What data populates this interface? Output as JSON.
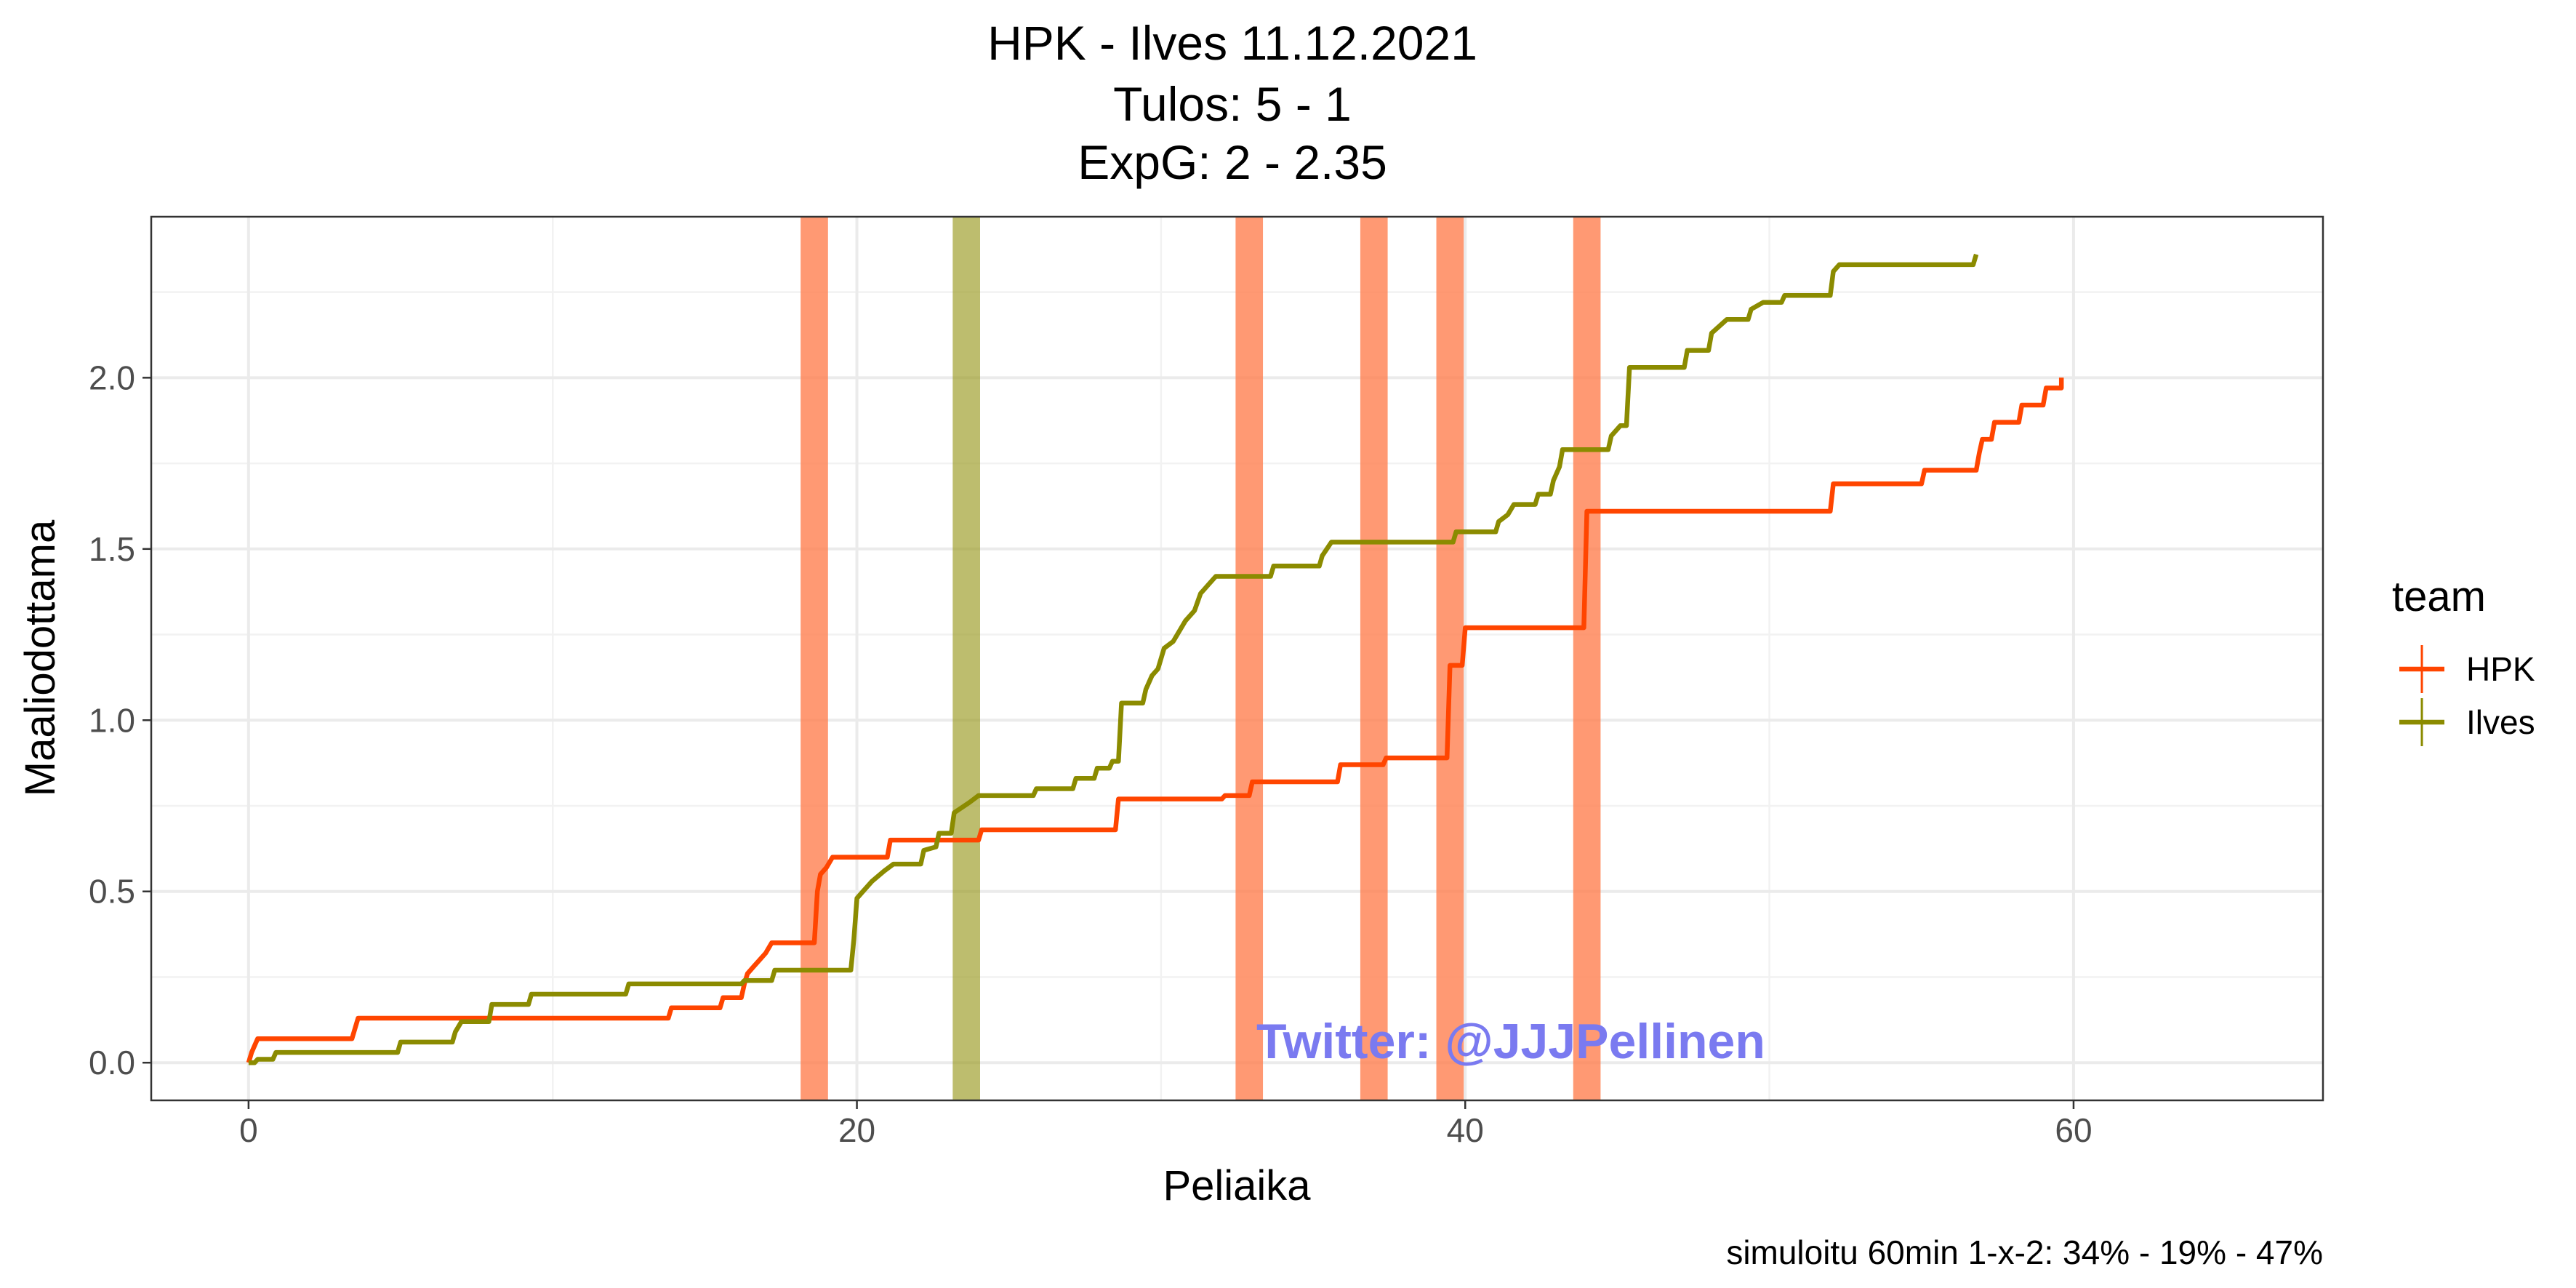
{
  "chart_data": {
    "type": "line",
    "title": [
      "HPK - Ilves 11.12.2021",
      "Tulos: 5 - 1",
      "ExpG: 2 - 2.35"
    ],
    "xlabel": "Peliaika",
    "ylabel": "Maaliodottama",
    "xlim": [
      -3.2,
      68.2
    ],
    "ylim": [
      -0.11,
      2.47
    ],
    "x_ticks": [
      0,
      20,
      40,
      60
    ],
    "x_tick_labels": [
      "0",
      "20",
      "40",
      "60"
    ],
    "y_ticks": [
      0,
      0.5,
      1,
      1.5,
      2
    ],
    "y_tick_labels": [
      "0.0",
      "0.5",
      "1.0",
      "1.5",
      "2.0"
    ],
    "grid": true,
    "legend": {
      "title": "team",
      "position": "right"
    },
    "caption": "simuloitu 60min 1-x-2:  34% - 19% - 47%",
    "watermark": "Twitter: @JJJPellinen",
    "series": [
      {
        "name": "HPK",
        "color": "#ff4500",
        "points": [
          [
            0,
            0
          ],
          [
            0.1,
            0.03
          ],
          [
            0.2,
            0.05
          ],
          [
            0.3,
            0.07
          ],
          [
            3.4,
            0.07
          ],
          [
            3.5,
            0.1
          ],
          [
            3.6,
            0.13
          ],
          [
            13.8,
            0.13
          ],
          [
            13.9,
            0.16
          ],
          [
            15.5,
            0.16
          ],
          [
            15.6,
            0.19
          ],
          [
            16.2,
            0.19
          ],
          [
            16.3,
            0.23
          ],
          [
            16.4,
            0.26
          ],
          [
            16.6,
            0.28
          ],
          [
            16.8,
            0.3
          ],
          [
            17.0,
            0.32
          ],
          [
            17.2,
            0.35
          ],
          [
            18.6,
            0.35
          ],
          [
            18.7,
            0.5
          ],
          [
            18.8,
            0.55
          ],
          [
            19.0,
            0.57
          ],
          [
            19.2,
            0.6
          ],
          [
            21.0,
            0.6
          ],
          [
            21.1,
            0.65
          ],
          [
            24.0,
            0.65
          ],
          [
            24.1,
            0.68
          ],
          [
            28.5,
            0.68
          ],
          [
            28.6,
            0.77
          ],
          [
            32.0,
            0.77
          ],
          [
            32.1,
            0.78
          ],
          [
            32.9,
            0.78
          ],
          [
            33.0,
            0.82
          ],
          [
            35.8,
            0.82
          ],
          [
            35.9,
            0.87
          ],
          [
            37.3,
            0.87
          ],
          [
            37.4,
            0.89
          ],
          [
            39.4,
            0.89
          ],
          [
            39.5,
            1.16
          ],
          [
            39.9,
            1.16
          ],
          [
            40.0,
            1.27
          ],
          [
            43.9,
            1.27
          ],
          [
            44.0,
            1.61
          ],
          [
            52.0,
            1.61
          ],
          [
            52.1,
            1.69
          ],
          [
            55.0,
            1.69
          ],
          [
            55.1,
            1.73
          ],
          [
            56.8,
            1.73
          ],
          [
            56.9,
            1.78
          ],
          [
            57.0,
            1.82
          ],
          [
            57.3,
            1.82
          ],
          [
            57.4,
            1.87
          ],
          [
            58.2,
            1.87
          ],
          [
            58.3,
            1.92
          ],
          [
            59.0,
            1.92
          ],
          [
            59.1,
            1.97
          ],
          [
            59.6,
            1.97
          ],
          [
            59.6,
            2.0
          ]
        ]
      },
      {
        "name": "Ilves",
        "color": "#8b8b00",
        "points": [
          [
            0,
            0
          ],
          [
            0.2,
            0
          ],
          [
            0.3,
            0.01
          ],
          [
            0.8,
            0.01
          ],
          [
            0.9,
            0.03
          ],
          [
            4.9,
            0.03
          ],
          [
            5.0,
            0.06
          ],
          [
            6.7,
            0.06
          ],
          [
            6.8,
            0.09
          ],
          [
            7.0,
            0.12
          ],
          [
            7.9,
            0.12
          ],
          [
            8.0,
            0.17
          ],
          [
            9.2,
            0.17
          ],
          [
            9.3,
            0.2
          ],
          [
            12.4,
            0.2
          ],
          [
            12.5,
            0.23
          ],
          [
            16.2,
            0.23
          ],
          [
            16.3,
            0.24
          ],
          [
            17.2,
            0.24
          ],
          [
            17.3,
            0.27
          ],
          [
            19.8,
            0.27
          ],
          [
            19.9,
            0.36
          ],
          [
            20.0,
            0.48
          ],
          [
            20.2,
            0.5
          ],
          [
            20.5,
            0.53
          ],
          [
            20.9,
            0.56
          ],
          [
            21.2,
            0.58
          ],
          [
            22.1,
            0.58
          ],
          [
            22.2,
            0.62
          ],
          [
            22.6,
            0.63
          ],
          [
            22.7,
            0.67
          ],
          [
            23.1,
            0.67
          ],
          [
            23.2,
            0.73
          ],
          [
            23.7,
            0.76
          ],
          [
            24.0,
            0.78
          ],
          [
            25.8,
            0.78
          ],
          [
            25.9,
            0.8
          ],
          [
            27.1,
            0.8
          ],
          [
            27.2,
            0.83
          ],
          [
            27.8,
            0.83
          ],
          [
            27.9,
            0.86
          ],
          [
            28.3,
            0.86
          ],
          [
            28.4,
            0.88
          ],
          [
            28.6,
            0.88
          ],
          [
            28.7,
            1.05
          ],
          [
            29.4,
            1.05
          ],
          [
            29.5,
            1.09
          ],
          [
            29.7,
            1.13
          ],
          [
            29.9,
            1.15
          ],
          [
            30.1,
            1.21
          ],
          [
            30.4,
            1.23
          ],
          [
            30.8,
            1.29
          ],
          [
            31.1,
            1.32
          ],
          [
            31.3,
            1.37
          ],
          [
            31.6,
            1.4
          ],
          [
            31.8,
            1.42
          ],
          [
            33.6,
            1.42
          ],
          [
            33.7,
            1.45
          ],
          [
            35.2,
            1.45
          ],
          [
            35.3,
            1.48
          ],
          [
            35.6,
            1.52
          ],
          [
            39.6,
            1.52
          ],
          [
            39.7,
            1.55
          ],
          [
            41.0,
            1.55
          ],
          [
            41.1,
            1.58
          ],
          [
            41.4,
            1.6
          ],
          [
            41.6,
            1.63
          ],
          [
            42.3,
            1.63
          ],
          [
            42.4,
            1.66
          ],
          [
            42.8,
            1.66
          ],
          [
            42.9,
            1.7
          ],
          [
            43.1,
            1.74
          ],
          [
            43.2,
            1.79
          ],
          [
            44.7,
            1.79
          ],
          [
            44.8,
            1.83
          ],
          [
            45.1,
            1.86
          ],
          [
            45.3,
            1.86
          ],
          [
            45.4,
            2.03
          ],
          [
            47.2,
            2.03
          ],
          [
            47.3,
            2.08
          ],
          [
            48.0,
            2.08
          ],
          [
            48.1,
            2.13
          ],
          [
            48.6,
            2.17
          ],
          [
            49.3,
            2.17
          ],
          [
            49.4,
            2.2
          ],
          [
            49.8,
            2.22
          ],
          [
            50.4,
            2.22
          ],
          [
            50.5,
            2.24
          ],
          [
            52.0,
            2.24
          ],
          [
            52.1,
            2.31
          ],
          [
            52.3,
            2.33
          ],
          [
            56.7,
            2.33
          ],
          [
            56.8,
            2.36
          ]
        ]
      }
    ],
    "goals": [
      {
        "team": "HPK",
        "time": 18.6,
        "color": "#ff7f50"
      },
      {
        "team": "Ilves",
        "time": 23.6,
        "color": "#9a9a20"
      },
      {
        "team": "HPK",
        "time": 32.9,
        "color": "#ff7f50"
      },
      {
        "team": "HPK",
        "time": 37.0,
        "color": "#ff7f50"
      },
      {
        "team": "HPK",
        "time": 39.5,
        "color": "#ff7f50"
      },
      {
        "team": "HPK",
        "time": 44.0,
        "color": "#ff7f50"
      }
    ]
  }
}
